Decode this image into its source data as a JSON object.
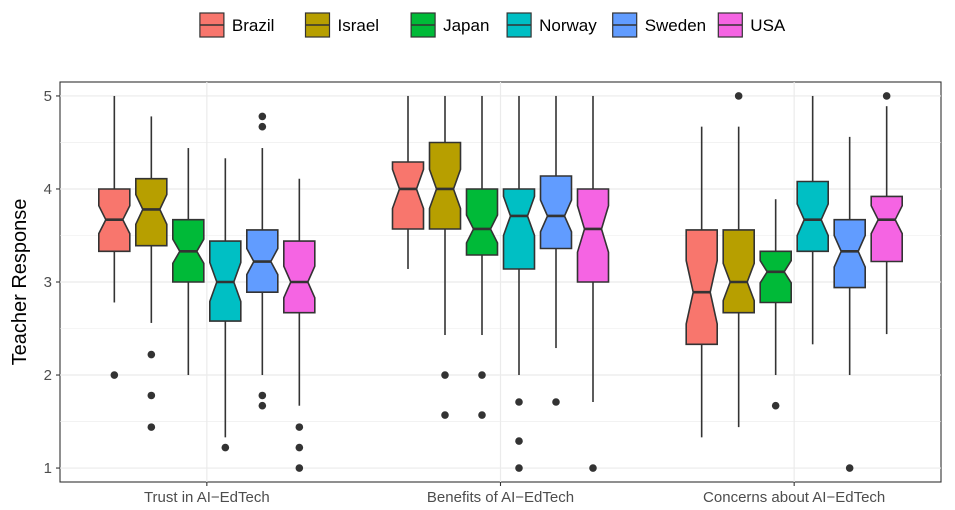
{
  "chart_data": {
    "type": "boxplot",
    "notched": true,
    "ylabel": "Teacher Response",
    "xlabel": "",
    "ylim": [
      0.85,
      5.15
    ],
    "yticks": [
      1,
      2,
      3,
      4,
      5
    ],
    "categories": [
      "Trust in AI−EdTech",
      "Benefits of AI−EdTech",
      "Concerns about AI−EdTech"
    ],
    "legend": {
      "position": "top",
      "entries": [
        "Brazil",
        "Israel",
        "Japan",
        "Norway",
        "Sweden",
        "USA"
      ]
    },
    "colors": {
      "Brazil": "#F8766D",
      "Israel": "#B79F00",
      "Japan": "#00BA38",
      "Norway": "#00BFC4",
      "Sweden": "#619CFF",
      "USA": "#F564E3"
    },
    "grid": true,
    "series": [
      {
        "name": "Brazil",
        "boxes": [
          {
            "whisker_low": 2.78,
            "q1": 3.33,
            "median": 3.67,
            "q3": 4.0,
            "whisker_high": 5.0,
            "notch_low": 3.52,
            "notch_high": 3.82,
            "outliers": [
              2.0
            ]
          },
          {
            "whisker_low": 3.14,
            "q1": 3.57,
            "median": 4.0,
            "q3": 4.29,
            "whisker_high": 5.0,
            "notch_low": 3.79,
            "notch_high": 4.21,
            "outliers": []
          },
          {
            "whisker_low": 1.33,
            "q1": 2.33,
            "median": 2.89,
            "q3": 3.56,
            "whisker_high": 4.67,
            "notch_low": 2.55,
            "notch_high": 3.23,
            "outliers": []
          }
        ]
      },
      {
        "name": "Israel",
        "boxes": [
          {
            "whisker_low": 2.56,
            "q1": 3.39,
            "median": 3.78,
            "q3": 4.11,
            "whisker_high": 4.78,
            "notch_low": 3.62,
            "notch_high": 3.94,
            "outliers": [
              2.22,
              1.78,
              1.44
            ]
          },
          {
            "whisker_low": 2.43,
            "q1": 3.57,
            "median": 4.0,
            "q3": 4.5,
            "whisker_high": 5.0,
            "notch_low": 3.79,
            "notch_high": 4.21,
            "outliers": [
              2.0,
              1.57
            ]
          },
          {
            "whisker_low": 1.44,
            "q1": 2.67,
            "median": 3.0,
            "q3": 3.56,
            "whisker_high": 4.67,
            "notch_low": 2.8,
            "notch_high": 3.2,
            "outliers": [
              5.0
            ]
          }
        ]
      },
      {
        "name": "Japan",
        "boxes": [
          {
            "whisker_low": 2.0,
            "q1": 3.0,
            "median": 3.33,
            "q3": 3.67,
            "whisker_high": 4.44,
            "notch_low": 3.2,
            "notch_high": 3.46,
            "outliers": []
          },
          {
            "whisker_low": 2.43,
            "q1": 3.29,
            "median": 3.57,
            "q3": 4.0,
            "whisker_high": 5.0,
            "notch_low": 3.42,
            "notch_high": 3.72,
            "outliers": [
              2.0,
              1.57
            ]
          },
          {
            "whisker_low": 2.0,
            "q1": 2.78,
            "median": 3.11,
            "q3": 3.33,
            "whisker_high": 3.89,
            "notch_low": 2.99,
            "notch_high": 3.23,
            "outliers": [
              1.67
            ]
          }
        ]
      },
      {
        "name": "Norway",
        "boxes": [
          {
            "whisker_low": 1.33,
            "q1": 2.58,
            "median": 3.0,
            "q3": 3.44,
            "whisker_high": 4.33,
            "notch_low": 2.79,
            "notch_high": 3.21,
            "outliers": [
              1.22
            ]
          },
          {
            "whisker_low": 2.0,
            "q1": 3.14,
            "median": 3.71,
            "q3": 4.0,
            "whisker_high": 5.0,
            "notch_low": 3.5,
            "notch_high": 3.92,
            "outliers": [
              1.71,
              1.29,
              1.0
            ]
          },
          {
            "whisker_low": 2.33,
            "q1": 3.33,
            "median": 3.67,
            "q3": 4.08,
            "whisker_high": 5.0,
            "notch_low": 3.5,
            "notch_high": 3.84,
            "outliers": []
          }
        ]
      },
      {
        "name": "Sweden",
        "boxes": [
          {
            "whisker_low": 2.0,
            "q1": 2.89,
            "median": 3.22,
            "q3": 3.56,
            "whisker_high": 4.44,
            "notch_low": 3.08,
            "notch_high": 3.36,
            "outliers": [
              4.78,
              4.67,
              1.78,
              1.67
            ]
          },
          {
            "whisker_low": 2.29,
            "q1": 3.36,
            "median": 3.71,
            "q3": 4.14,
            "whisker_high": 5.0,
            "notch_low": 3.54,
            "notch_high": 3.88,
            "outliers": [
              1.71
            ]
          },
          {
            "whisker_low": 2.0,
            "q1": 2.94,
            "median": 3.33,
            "q3": 3.67,
            "whisker_high": 4.56,
            "notch_low": 3.16,
            "notch_high": 3.5,
            "outliers": [
              1.0
            ]
          }
        ]
      },
      {
        "name": "USA",
        "boxes": [
          {
            "whisker_low": 1.67,
            "q1": 2.67,
            "median": 3.0,
            "q3": 3.44,
            "whisker_high": 4.11,
            "notch_low": 2.83,
            "notch_high": 3.17,
            "outliers": [
              1.44,
              1.22,
              1.0
            ]
          },
          {
            "whisker_low": 1.71,
            "q1": 3.0,
            "median": 3.57,
            "q3": 4.0,
            "whisker_high": 5.0,
            "notch_low": 3.32,
            "notch_high": 3.82,
            "outliers": [
              1.0
            ]
          },
          {
            "whisker_low": 2.44,
            "q1": 3.22,
            "median": 3.67,
            "q3": 3.92,
            "whisker_high": 4.89,
            "notch_low": 3.52,
            "notch_high": 3.82,
            "outliers": [
              5.0
            ]
          }
        ]
      }
    ]
  }
}
